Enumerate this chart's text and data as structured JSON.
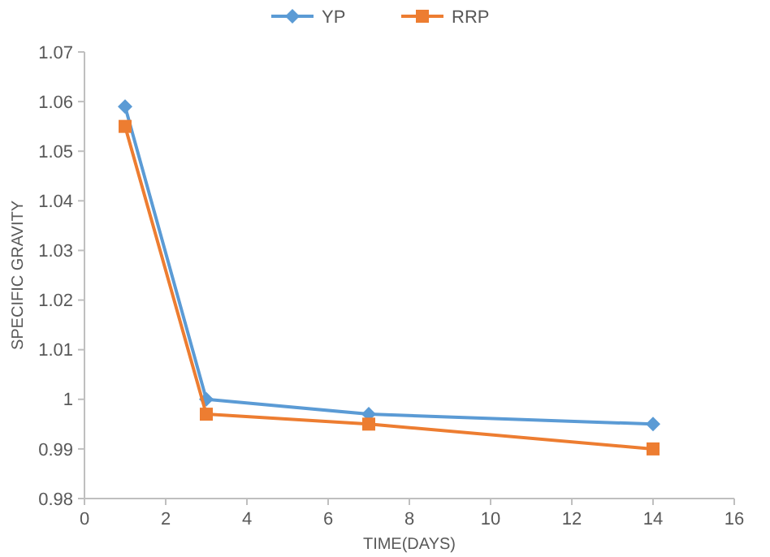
{
  "chart_data": {
    "type": "line",
    "xlabel": "TIME(DAYS)",
    "ylabel": "SPECIFIC GRAVITY",
    "x": [
      1,
      3,
      7,
      14
    ],
    "series": [
      {
        "name": "YP",
        "color": "#5b9bd5",
        "marker": "diamond",
        "values": [
          1.059,
          1.0,
          0.997,
          0.995
        ]
      },
      {
        "name": "RRP",
        "color": "#ed7d31",
        "marker": "square",
        "values": [
          1.055,
          0.997,
          0.995,
          0.99
        ]
      }
    ],
    "xlim": [
      0,
      16
    ],
    "xticks": [
      0,
      2,
      4,
      6,
      8,
      10,
      12,
      14,
      16
    ],
    "ylim": [
      0.98,
      1.07
    ],
    "yticks": [
      0.98,
      0.99,
      1,
      1.01,
      1.02,
      1.03,
      1.04,
      1.05,
      1.06,
      1.07
    ],
    "grid": false,
    "legend": "top",
    "line_style": "solid"
  }
}
